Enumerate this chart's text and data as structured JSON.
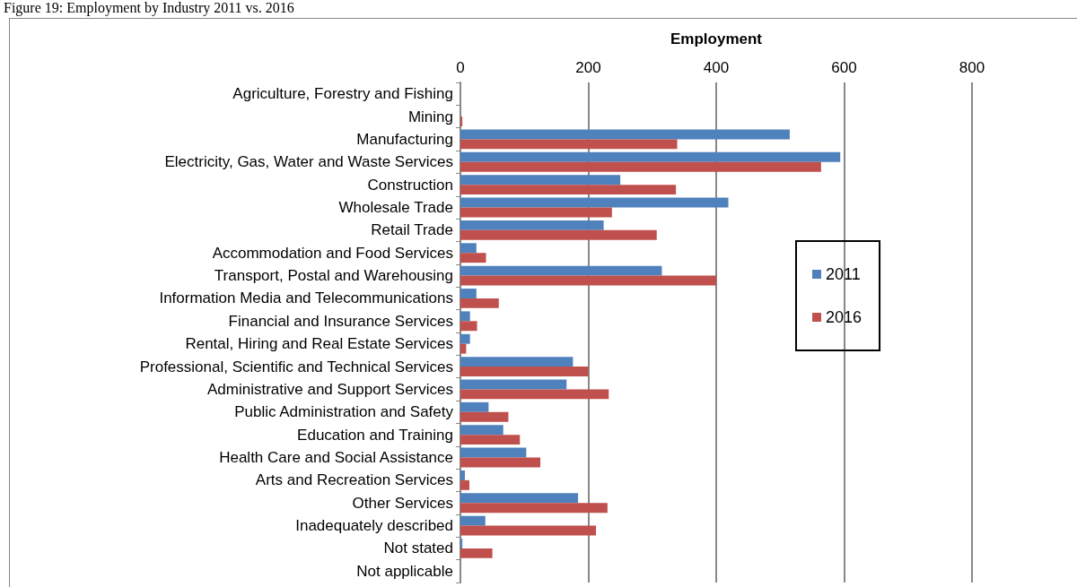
{
  "chart_data": {
    "type": "bar",
    "orientation": "horizontal",
    "title": "Figure 19: Employment by Industry 2011 vs. 2016",
    "xlabel": "Employment",
    "categories": [
      "Agriculture, Forestry and Fishing",
      "Mining",
      "Manufacturing",
      "Electricity, Gas, Water and Waste Services",
      "Construction",
      "Wholesale Trade",
      "Retail Trade",
      "Accommodation and Food Services",
      "Transport, Postal and Warehousing",
      "Information Media and Telecommunications",
      "Financial and Insurance Services",
      "Rental, Hiring and Real Estate Services",
      "Professional, Scientific and Technical Services",
      "Administrative and Support Services",
      "Public Administration and Safety",
      "Education and Training",
      "Health Care and Social Assistance",
      "Arts and Recreation Services",
      "Other Services",
      "Inadequately described",
      "Not stated",
      "Not applicable"
    ],
    "series": [
      {
        "name": "2011",
        "color": "#4f81bd",
        "values": [
          0,
          0,
          515,
          594,
          250,
          419,
          224,
          25,
          315,
          25,
          15,
          15,
          176,
          166,
          44,
          67,
          103,
          7,
          184,
          39,
          3,
          0
        ]
      },
      {
        "name": "2016",
        "color": "#c0504d",
        "values": [
          0,
          3,
          339,
          564,
          337,
          237,
          307,
          40,
          400,
          60,
          26,
          9,
          200,
          232,
          75,
          93,
          125,
          14,
          230,
          212,
          50,
          0
        ]
      }
    ],
    "xlim": [
      0,
      800
    ],
    "xticks": [
      0,
      200,
      400,
      600,
      800
    ],
    "grid": "x",
    "legend": "right"
  }
}
